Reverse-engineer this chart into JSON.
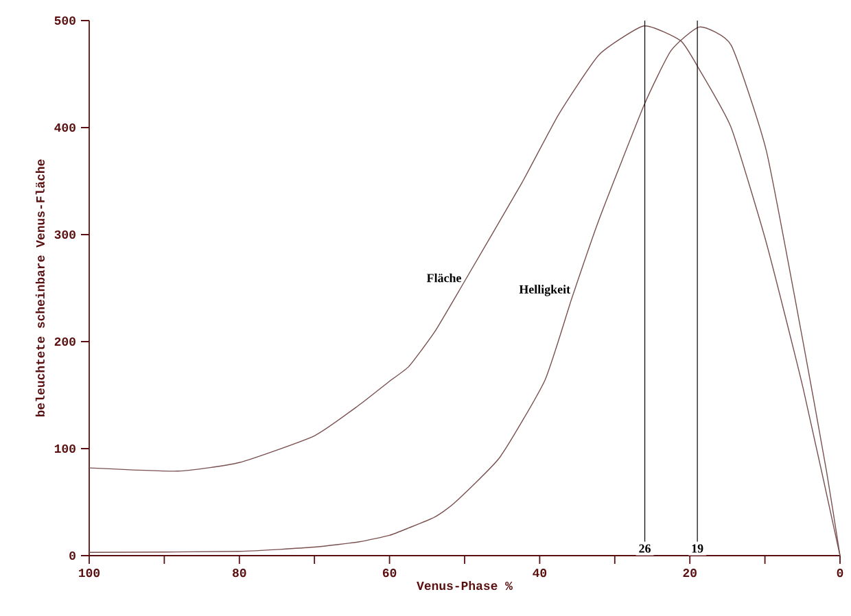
{
  "chart_data": {
    "type": "line",
    "xlabel": "Venus-Phase %",
    "ylabel": "beleuchtete scheinbare Venus-Fläche",
    "xlim": [
      100,
      0
    ],
    "ylim": [
      0,
      500
    ],
    "xticks": [
      100,
      {
        "value": 90,
        "label": null
      },
      80,
      {
        "value": 70,
        "label": null
      },
      60,
      {
        "value": 50,
        "label": null
      },
      40,
      {
        "value": 30,
        "label": null
      },
      20,
      {
        "value": 10,
        "label": null
      },
      0
    ],
    "yticks": [
      0,
      100,
      200,
      300,
      400,
      500
    ],
    "grid": false,
    "legend": false,
    "marker": "none",
    "line_style": "solid",
    "series": [
      {
        "name": "Fläche",
        "color": "#7a4f4f",
        "x": [
          100,
          88.2,
          80,
          70,
          64,
          60,
          57.4,
          54,
          50.2,
          42.4,
          37.5,
          32.1,
          26.1,
          21.2,
          18.8,
          14.5,
          9.8,
          4.9,
          0
        ],
        "values": [
          82,
          79,
          87,
          112,
          141,
          163,
          177,
          209,
          254,
          348,
          412,
          468,
          495,
          481,
          455,
          400,
          292,
          156,
          0
        ]
      },
      {
        "name": "Helligkeit",
        "color": "#7a4f4f",
        "x": [
          100,
          80,
          70,
          64,
          60,
          57.4,
          54,
          51.4,
          45.3,
          39.3,
          35.7,
          32.1,
          26.1,
          22.5,
          18.7,
          14.5,
          9.8,
          4.9,
          1.8,
          0
        ],
        "values": [
          3,
          4,
          8,
          13,
          19,
          26,
          36,
          49,
          92,
          164,
          241,
          314,
          421,
          472,
          494,
          477,
          378,
          199,
          79,
          0
        ]
      }
    ],
    "ref_lines": [
      {
        "axis": "x",
        "value": 26,
        "label": "26",
        "color": "#000000"
      },
      {
        "axis": "x",
        "value": 19,
        "label": "19",
        "color": "#000000"
      }
    ]
  }
}
